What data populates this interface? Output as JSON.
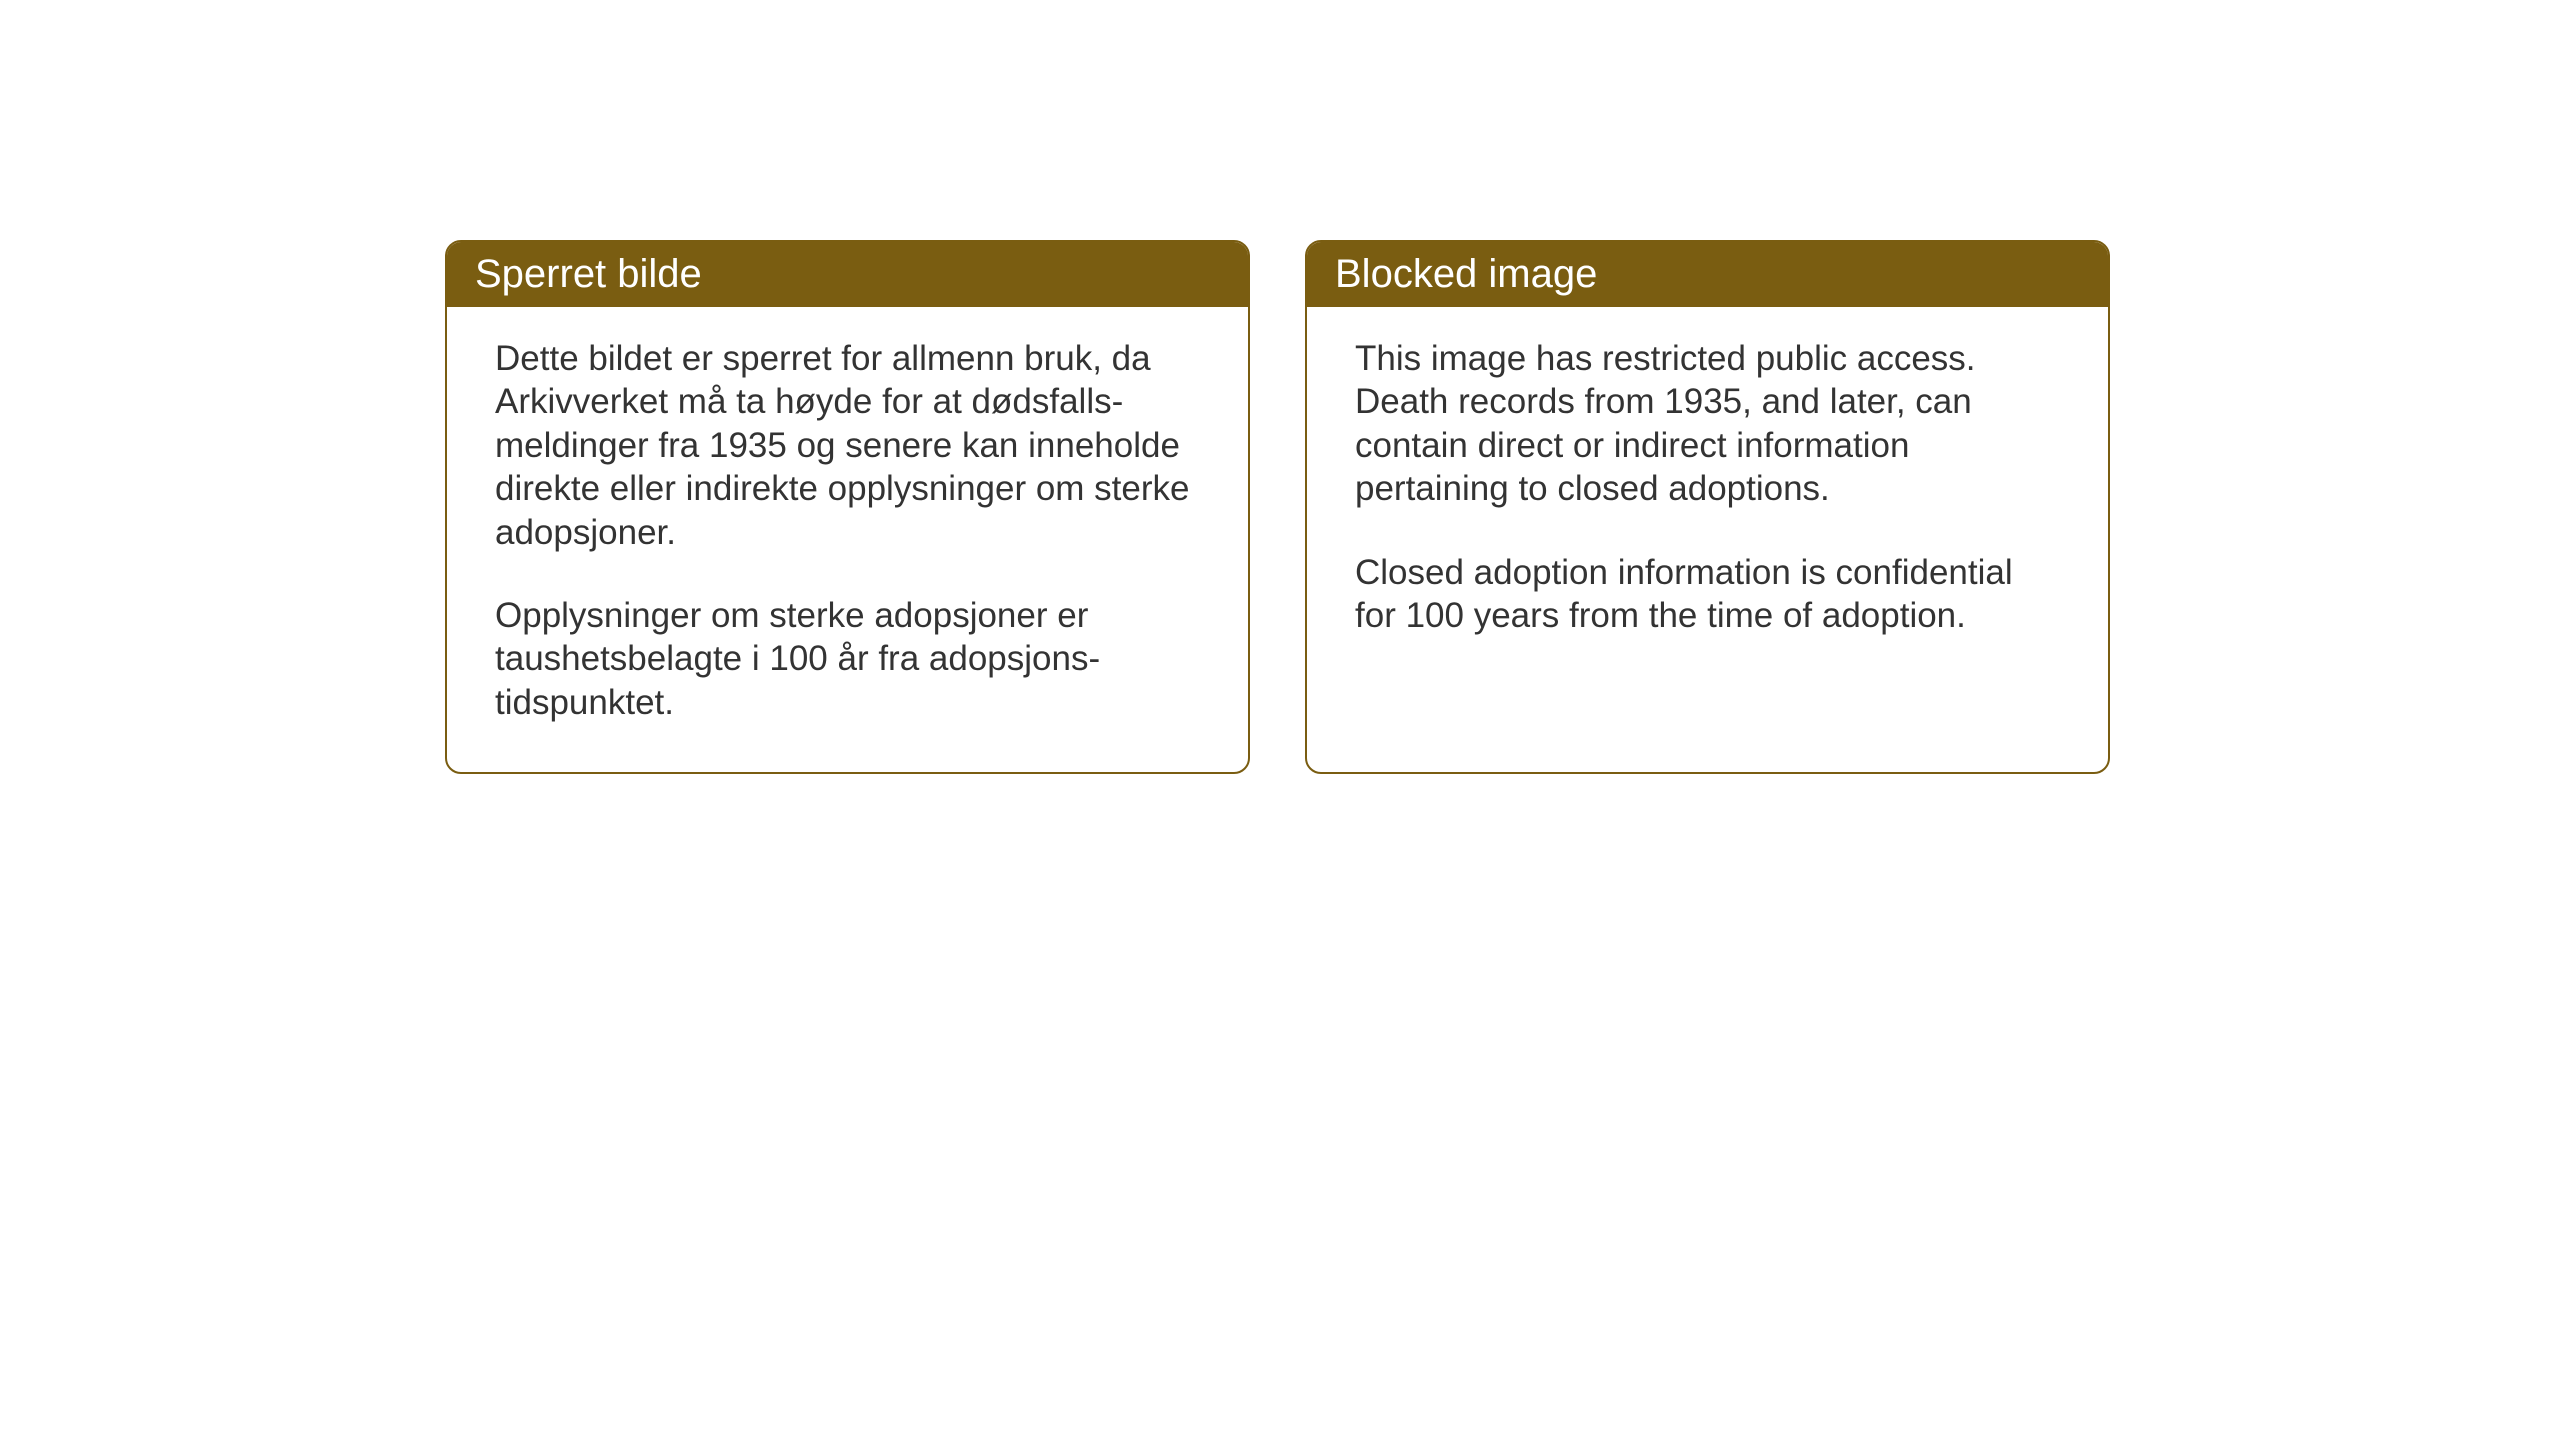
{
  "layout": {
    "background_color": "#ffffff",
    "card_border_color": "#7a5d11",
    "card_border_radius": 16,
    "header_background": "#7a5d11",
    "header_text_color": "#ffffff",
    "body_text_color": "#333333",
    "header_fontsize": 40,
    "body_fontsize": 35
  },
  "cards": {
    "norwegian": {
      "title": "Sperret bilde",
      "paragraph1": "Dette bildet er sperret for allmenn bruk, da Arkivverket må ta høyde for at dødsfalls-meldinger fra 1935 og senere kan inneholde direkte eller indirekte opplysninger om sterke adopsjoner.",
      "paragraph2": "Opplysninger om sterke adopsjoner er taushetsbelagte i 100 år fra adopsjons-tidspunktet."
    },
    "english": {
      "title": "Blocked image",
      "paragraph1": "This image has restricted public access. Death records from 1935, and later, can contain direct or indirect information pertaining to closed adoptions.",
      "paragraph2": "Closed adoption information is confidential for 100 years from the time of adoption."
    }
  }
}
